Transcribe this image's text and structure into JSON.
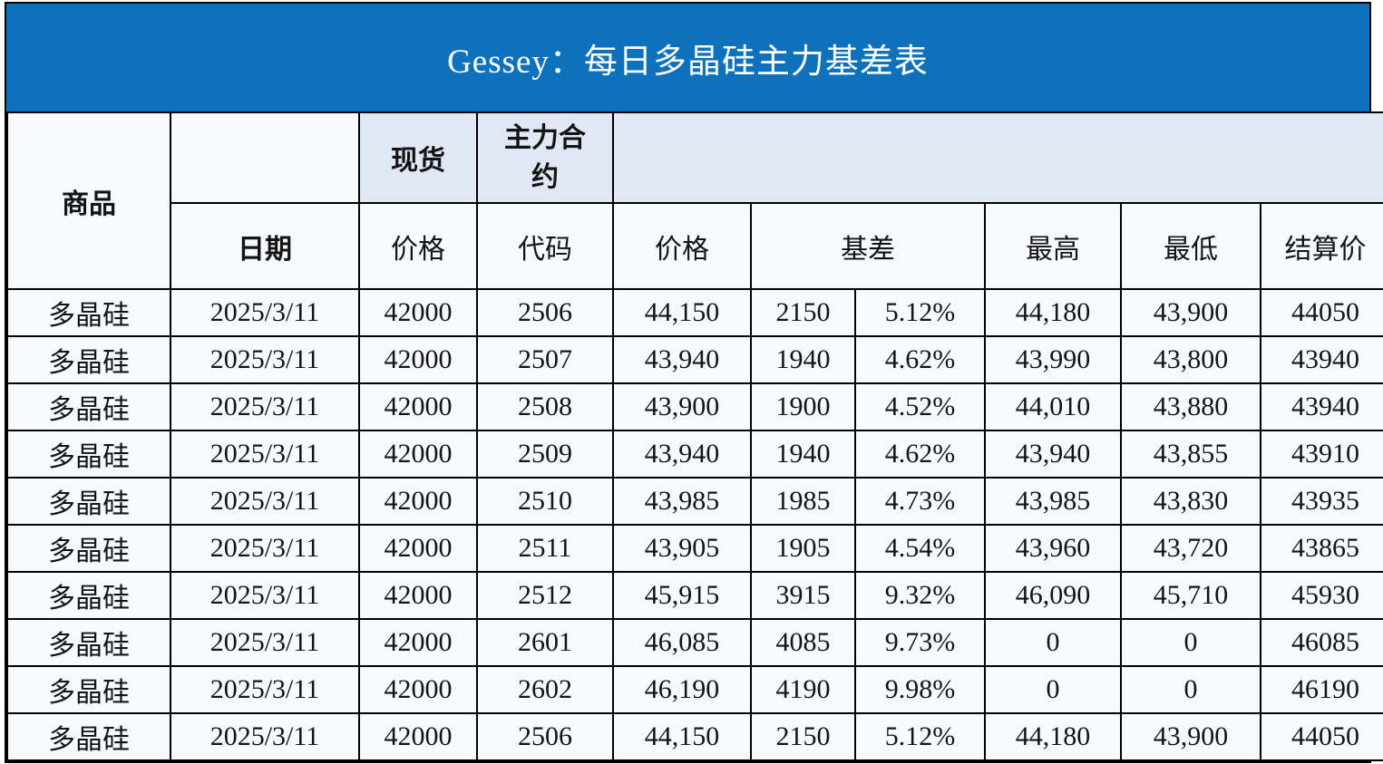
{
  "title": "Gessey：每日多晶硅主力基差表",
  "colors": {
    "title_bg": "#0d72bb",
    "title_text": "#ffffff",
    "header_fill": "#dfe8f4",
    "cell_fill": "#f7fafd",
    "grid": "#000000",
    "number_text": "#141414",
    "commodity_text": "#2a2ae6",
    "date_text": "#3a5f9e",
    "basis_text": "#f01e17"
  },
  "table": {
    "headers": {
      "commodity": "商品",
      "spot_group": "现货",
      "main_contract_group": "主力合约",
      "date": "日期",
      "spot_price": "价格",
      "contract_code": "代码",
      "contract_price": "价格",
      "basis": "基差",
      "high": "最高",
      "low": "最低",
      "settlement": "结算价"
    },
    "columns": [
      "commodity",
      "date",
      "spot_price",
      "contract_code",
      "contract_price",
      "basis_value",
      "basis_percent",
      "high",
      "low",
      "settlement"
    ],
    "rows": [
      [
        "多晶硅",
        "2025/3/11",
        "42000",
        "2506",
        "44,150",
        "2150",
        "5.12%",
        "44,180",
        "43,900",
        "44050"
      ],
      [
        "多晶硅",
        "2025/3/11",
        "42000",
        "2507",
        "43,940",
        "1940",
        "4.62%",
        "43,990",
        "43,800",
        "43940"
      ],
      [
        "多晶硅",
        "2025/3/11",
        "42000",
        "2508",
        "43,900",
        "1900",
        "4.52%",
        "44,010",
        "43,880",
        "43940"
      ],
      [
        "多晶硅",
        "2025/3/11",
        "42000",
        "2509",
        "43,940",
        "1940",
        "4.62%",
        "43,940",
        "43,855",
        "43910"
      ],
      [
        "多晶硅",
        "2025/3/11",
        "42000",
        "2510",
        "43,985",
        "1985",
        "4.73%",
        "43,985",
        "43,830",
        "43935"
      ],
      [
        "多晶硅",
        "2025/3/11",
        "42000",
        "2511",
        "43,905",
        "1905",
        "4.54%",
        "43,960",
        "43,720",
        "43865"
      ],
      [
        "多晶硅",
        "2025/3/11",
        "42000",
        "2512",
        "45,915",
        "3915",
        "9.32%",
        "46,090",
        "45,710",
        "45930"
      ],
      [
        "多晶硅",
        "2025/3/11",
        "42000",
        "2601",
        "46,085",
        "4085",
        "9.73%",
        "0",
        "0",
        "46085"
      ],
      [
        "多晶硅",
        "2025/3/11",
        "42000",
        "2602",
        "46,190",
        "4190",
        "9.98%",
        "0",
        "0",
        "46190"
      ],
      [
        "多晶硅",
        "2025/3/11",
        "42000",
        "2506",
        "44,150",
        "2150",
        "5.12%",
        "44,180",
        "43,900",
        "44050"
      ]
    ]
  }
}
